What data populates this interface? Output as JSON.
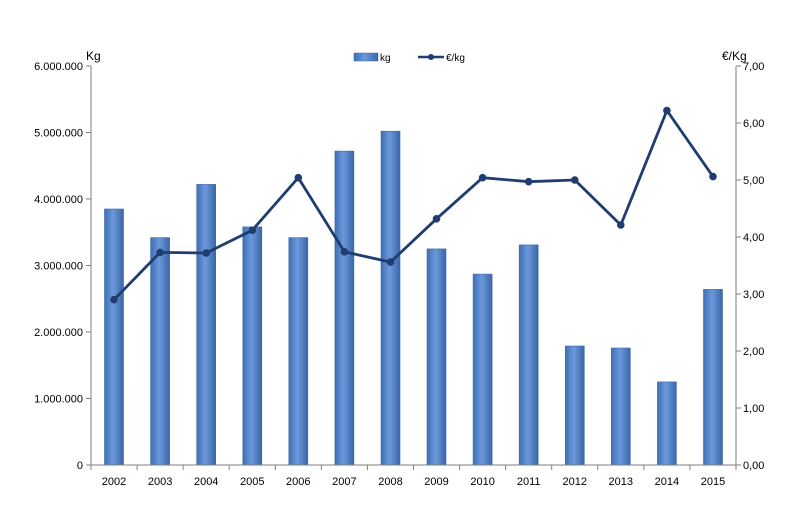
{
  "chart_data": {
    "type": "bar+line",
    "categories": [
      "2002",
      "2003",
      "2004",
      "2005",
      "2006",
      "2007",
      "2008",
      "2009",
      "2010",
      "2011",
      "2012",
      "2013",
      "2014",
      "2015"
    ],
    "series": [
      {
        "name": "kg",
        "type": "bar",
        "axis": "left",
        "values": [
          3850000,
          3420000,
          4220000,
          3580000,
          3420000,
          4720000,
          5020000,
          3250000,
          2870000,
          3310000,
          1790000,
          1760000,
          1250000,
          2640000
        ]
      },
      {
        "name": "€/kg",
        "type": "line",
        "axis": "right",
        "values": [
          2.9,
          3.73,
          3.72,
          4.12,
          5.04,
          3.74,
          3.56,
          4.32,
          5.04,
          4.97,
          5.0,
          4.21,
          6.22,
          5.06
        ]
      }
    ],
    "left_axis": {
      "label": "Kg",
      "ylim": [
        0,
        6000000
      ],
      "ticks": [
        0,
        1000000,
        2000000,
        3000000,
        4000000,
        5000000,
        6000000
      ],
      "tick_labels": [
        "0",
        "1.000.000",
        "2.000.000",
        "3.000.000",
        "4.000.000",
        "5.000.000",
        "6.000.000"
      ]
    },
    "right_axis": {
      "label": "€/Kg",
      "ylim": [
        0,
        7
      ],
      "ticks": [
        0,
        1,
        2,
        3,
        4,
        5,
        6,
        7
      ],
      "tick_labels": [
        "0,00",
        "1,00",
        "2,00",
        "3,00",
        "4,00",
        "5,00",
        "6,00",
        "7,00"
      ]
    },
    "grid": false,
    "legend_position": "top-center",
    "colors": {
      "bar_fill": "#5b8bd0",
      "bar_stroke": "#3d6aad",
      "line": "#1f3d6e",
      "axis": "#7f7f7f"
    }
  }
}
